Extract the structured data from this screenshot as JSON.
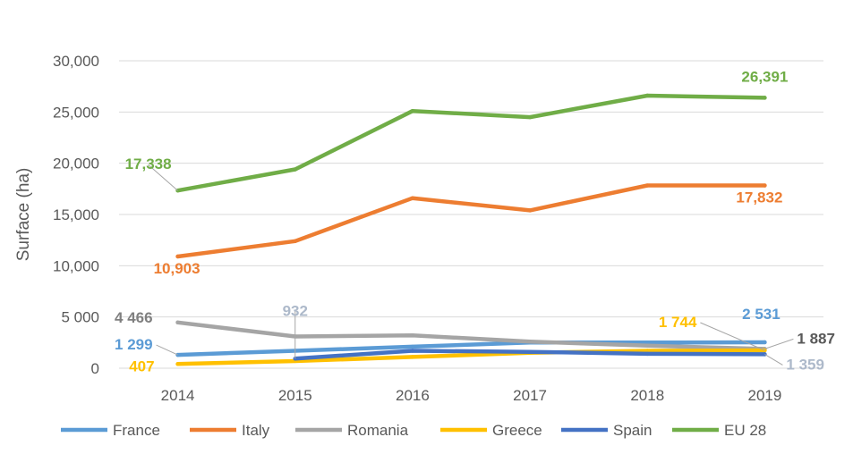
{
  "chart_data": {
    "type": "line",
    "title": "",
    "xlabel": "",
    "ylabel": "Surface (ha)",
    "x": [
      "2014",
      "2015",
      "2016",
      "2017",
      "2018",
      "2019"
    ],
    "ylim": [
      0,
      30000
    ],
    "y_ticks": [
      {
        "value": 0,
        "label": "0"
      },
      {
        "value": 5000,
        "label": "5 000"
      },
      {
        "value": 10000,
        "label": "10,000"
      },
      {
        "value": 15000,
        "label": "15,000"
      },
      {
        "value": 20000,
        "label": "20,000"
      },
      {
        "value": 25000,
        "label": "25,000"
      },
      {
        "value": 30000,
        "label": "30,000"
      }
    ],
    "grid": true,
    "legend_position": "bottom",
    "series": [
      {
        "name": "France",
        "color": "#5B9BD5",
        "values": [
          1299,
          1700,
          2100,
          2500,
          2500,
          2531
        ]
      },
      {
        "name": "Italy",
        "color": "#ED7D31",
        "values": [
          10903,
          12400,
          16600,
          15400,
          17832,
          17832
        ]
      },
      {
        "name": "Romania",
        "color": "#A5A5A5",
        "values": [
          4466,
          3100,
          3200,
          2600,
          2200,
          1887
        ]
      },
      {
        "name": "Greece",
        "color": "#FFC000",
        "values": [
          407,
          700,
          1100,
          1500,
          1700,
          1744
        ]
      },
      {
        "name": "Spain",
        "color": "#4472C4",
        "values": [
          null,
          932,
          1700,
          1600,
          1400,
          1359
        ]
      },
      {
        "name": "EU 28",
        "color": "#70AD47",
        "values": [
          17338,
          19400,
          25100,
          24500,
          26600,
          26391
        ]
      }
    ],
    "annotations": [
      {
        "series": 5,
        "point": 0,
        "text": "17,338",
        "color": "#70AD47"
      },
      {
        "series": 5,
        "point": 5,
        "text": "26,391",
        "color": "#70AD47"
      },
      {
        "series": 1,
        "point": 0,
        "text": "10,903",
        "color": "#ED7D31"
      },
      {
        "series": 1,
        "point": 5,
        "text": "17,832",
        "color": "#ED7D31"
      },
      {
        "series": 2,
        "point": 0,
        "text": "4 466",
        "color": "#7F7F7F"
      },
      {
        "series": 0,
        "point": 0,
        "text": "1 299",
        "color": "#5B9BD5"
      },
      {
        "series": 3,
        "point": 0,
        "text": "407",
        "color": "#FFC000"
      },
      {
        "series": 4,
        "point": 1,
        "text": "932",
        "color": "#ADB9CA"
      },
      {
        "series": 3,
        "point": 5,
        "text": "1 744",
        "color": "#FFC000"
      },
      {
        "series": 0,
        "point": 5,
        "text": "2 531",
        "color": "#5B9BD5"
      },
      {
        "series": 2,
        "point": 5,
        "text": "1 887",
        "color": "#595959"
      },
      {
        "series": 4,
        "point": 5,
        "text": "1 359",
        "color": "#ADB9CA"
      }
    ]
  }
}
